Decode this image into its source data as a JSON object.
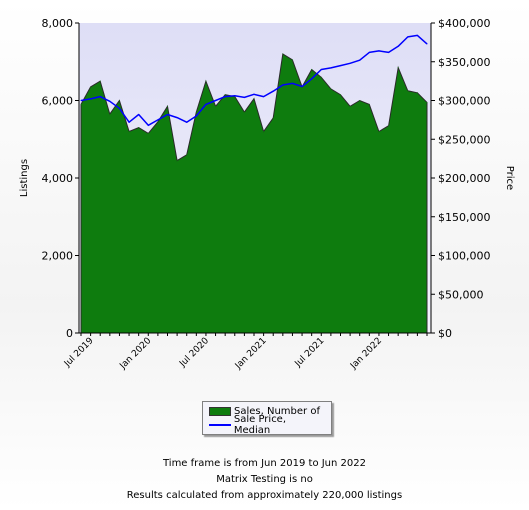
{
  "chart_data": {
    "type": "area",
    "x_labels": [
      "Jul 2019",
      "Jan 2020",
      "Jul 2020",
      "Jan 2021",
      "Jul 2021",
      "Jan 2022"
    ],
    "x": [
      "2019-06",
      "2019-07",
      "2019-08",
      "2019-09",
      "2019-10",
      "2019-11",
      "2019-12",
      "2020-01",
      "2020-02",
      "2020-03",
      "2020-04",
      "2020-05",
      "2020-06",
      "2020-07",
      "2020-08",
      "2020-09",
      "2020-10",
      "2020-11",
      "2020-12",
      "2021-01",
      "2021-02",
      "2021-03",
      "2021-04",
      "2021-05",
      "2021-06",
      "2021-07",
      "2021-08",
      "2021-09",
      "2021-10",
      "2021-11",
      "2021-12",
      "2022-01",
      "2022-02",
      "2022-03",
      "2022-04",
      "2022-05",
      "2022-06"
    ],
    "series": [
      {
        "name": "Sales, Number of",
        "type": "area",
        "axis": "left",
        "color": "#0e7c0e",
        "values": [
          5900,
          6350,
          6500,
          5650,
          6000,
          5200,
          5300,
          5150,
          5450,
          5850,
          4450,
          4600,
          5700,
          6500,
          5850,
          6150,
          6100,
          5700,
          6050,
          5200,
          5550,
          7200,
          7050,
          6350,
          6800,
          6600,
          6300,
          6150,
          5850,
          6000,
          5900,
          5200,
          5350,
          6850,
          6250,
          6200,
          5950
        ]
      },
      {
        "name": "Sale Price, Median",
        "type": "line",
        "axis": "right",
        "color": "#0000ff",
        "values": [
          300000,
          302000,
          305000,
          299000,
          290000,
          272000,
          282000,
          268000,
          275000,
          282000,
          278000,
          272000,
          280000,
          295000,
          300000,
          305000,
          306000,
          304000,
          308000,
          305000,
          312000,
          320000,
          322000,
          318000,
          328000,
          340000,
          342000,
          345000,
          348000,
          352000,
          362000,
          364000,
          362000,
          370000,
          382000,
          384000,
          373000
        ]
      }
    ],
    "ylabel": "Listings",
    "y2label": "Price",
    "ylim": [
      0,
      8000
    ],
    "y2lim": [
      0,
      400000
    ],
    "yticks": [
      "0",
      "2,000",
      "4,000",
      "6,000",
      "8,000"
    ],
    "y2ticks": [
      "$0",
      "$50,000",
      "$100,000",
      "$150,000",
      "$200,000",
      "$250,000",
      "$300,000",
      "$350,000",
      "$400,000"
    ],
    "grid": false,
    "legend": "bottom"
  },
  "colors": {
    "plot_background": "#e4e4f8",
    "sales_fill": "#0e7c0e",
    "price_line": "#0000ff"
  },
  "legend": {
    "sales_label": "Sales, Number of",
    "price_label": "Sale Price, Median"
  },
  "footer": {
    "line1": "Time frame is from Jun 2019 to Jun 2022",
    "line2": "Matrix Testing is no",
    "line3": "Results calculated from approximately 220,000 listings"
  }
}
